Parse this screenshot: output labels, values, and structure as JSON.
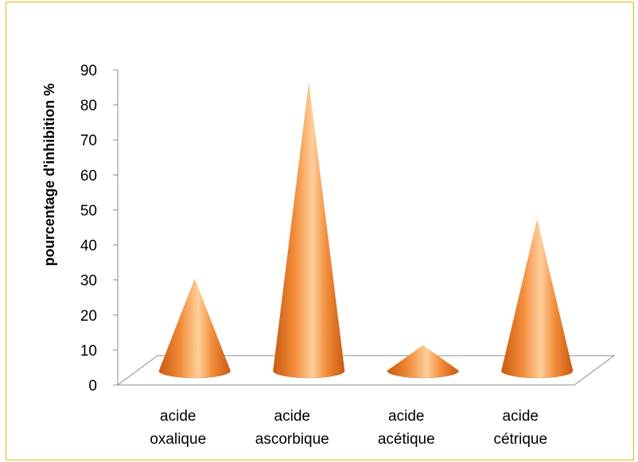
{
  "chart_data": {
    "type": "bar",
    "subtype": "3d-cone",
    "categories": [
      [
        "acide",
        "oxalique"
      ],
      [
        "acide",
        "ascorbique"
      ],
      [
        "acide",
        "acétique"
      ],
      [
        "acide",
        "cétrique"
      ]
    ],
    "values": [
      27,
      83,
      8,
      44
    ],
    "ylabel": "pourcentage d'inhibition %",
    "xlabel": "",
    "title": "",
    "ylim": [
      0,
      90
    ],
    "yticks": [
      0,
      10,
      20,
      30,
      40,
      50,
      60,
      70,
      80,
      90
    ],
    "grid": false,
    "legend": "none",
    "colors": {
      "cone": "#f28c3a",
      "cone_highlight": "#ffcf9a",
      "cone_shadow": "#c85a10",
      "frame": "#f5b800",
      "axis": "#8c8c8c"
    }
  }
}
